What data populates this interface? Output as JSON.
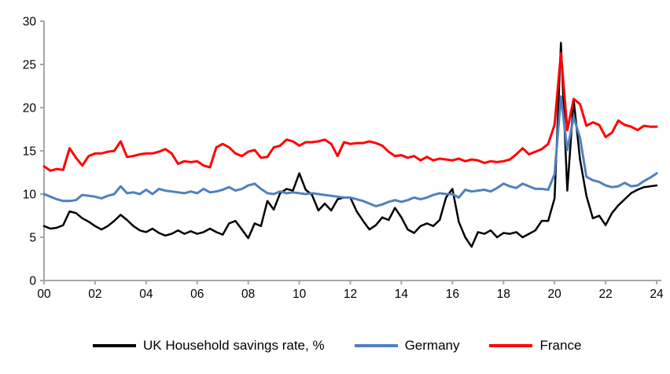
{
  "legend": {
    "items": [
      {
        "label": "UK Household savings rate, %",
        "color": "#000000"
      },
      {
        "label": "Germany",
        "color": "#4F81BD"
      },
      {
        "label": "France",
        "color": "#FF0000"
      }
    ]
  },
  "chart_data": {
    "type": "line",
    "title": "",
    "xlabel": "",
    "ylabel": "",
    "frequency": "quarterly",
    "start_year": 2000,
    "end_year": 2024,
    "ylim": [
      0,
      30
    ],
    "y_ticks": [
      0,
      5,
      10,
      15,
      20,
      25,
      30
    ],
    "x_tick_labels": [
      "00",
      "02",
      "04",
      "06",
      "08",
      "10",
      "12",
      "14",
      "16",
      "18",
      "20",
      "22",
      "24"
    ],
    "grid": "off",
    "legend_position": "bottom",
    "axis_color": "#a6a6a6",
    "series": [
      {
        "name": "UK Household savings rate, %",
        "color": "#000000",
        "stroke_width": 2.5,
        "values": [
          6.3,
          6.0,
          6.1,
          6.4,
          8.0,
          7.8,
          7.2,
          6.8,
          6.3,
          5.9,
          6.3,
          6.9,
          7.6,
          7.0,
          6.3,
          5.8,
          5.6,
          6.0,
          5.5,
          5.2,
          5.4,
          5.8,
          5.4,
          5.7,
          5.4,
          5.6,
          6.0,
          5.6,
          5.3,
          6.6,
          6.9,
          5.9,
          4.9,
          6.6,
          6.3,
          9.2,
          8.2,
          10.1,
          10.6,
          10.4,
          12.4,
          10.5,
          9.9,
          8.1,
          8.9,
          8.1,
          9.4,
          9.6,
          9.6,
          8.0,
          6.9,
          5.9,
          6.4,
          7.3,
          7.0,
          8.4,
          7.3,
          5.9,
          5.5,
          6.3,
          6.6,
          6.3,
          7.0,
          9.6,
          10.6,
          6.8,
          5.0,
          3.9,
          5.6,
          5.4,
          5.8,
          5.0,
          5.5,
          5.4,
          5.6,
          5.0,
          5.4,
          5.8,
          6.9,
          6.9,
          9.5,
          27.5,
          10.4,
          20.9,
          14.0,
          9.8,
          7.2,
          7.5,
          6.4,
          7.8,
          8.7,
          9.4,
          10.1,
          10.5,
          10.8,
          10.9,
          11.0
        ]
      },
      {
        "name": "Germany",
        "color": "#4F81BD",
        "stroke_width": 3,
        "values": [
          10.0,
          9.7,
          9.4,
          9.2,
          9.2,
          9.3,
          9.9,
          9.8,
          9.7,
          9.5,
          9.8,
          10.0,
          10.9,
          10.1,
          10.2,
          10.0,
          10.5,
          10.0,
          10.6,
          10.4,
          10.3,
          10.2,
          10.1,
          10.3,
          10.1,
          10.6,
          10.2,
          10.3,
          10.5,
          10.8,
          10.4,
          10.6,
          11.0,
          11.2,
          10.6,
          10.1,
          10.0,
          10.3,
          10.1,
          10.2,
          10.1,
          10.0,
          10.1,
          10.0,
          9.9,
          9.8,
          9.7,
          9.6,
          9.6,
          9.4,
          9.2,
          8.9,
          8.6,
          8.8,
          9.1,
          9.3,
          9.1,
          9.3,
          9.6,
          9.4,
          9.6,
          9.9,
          10.1,
          10.0,
          10.0,
          9.6,
          10.5,
          10.3,
          10.4,
          10.5,
          10.3,
          10.7,
          11.2,
          10.9,
          10.7,
          11.2,
          10.9,
          10.6,
          10.6,
          10.5,
          12.3,
          21.3,
          15.1,
          18.9,
          16.5,
          12.0,
          11.6,
          11.4,
          11.0,
          10.8,
          10.9,
          11.3,
          10.9,
          11.0,
          11.5,
          11.9,
          12.4
        ]
      },
      {
        "name": "France",
        "color": "#FF0000",
        "stroke_width": 3,
        "values": [
          13.2,
          12.7,
          12.9,
          12.8,
          15.3,
          14.2,
          13.3,
          14.4,
          14.7,
          14.7,
          14.9,
          15.0,
          16.1,
          14.3,
          14.4,
          14.6,
          14.7,
          14.7,
          14.9,
          15.2,
          14.7,
          13.5,
          13.8,
          13.7,
          13.8,
          13.3,
          13.1,
          15.4,
          15.8,
          15.4,
          14.7,
          14.4,
          14.9,
          15.1,
          14.2,
          14.3,
          15.4,
          15.6,
          16.3,
          16.1,
          15.6,
          16.0,
          16.0,
          16.1,
          16.3,
          15.8,
          14.4,
          16.0,
          15.8,
          15.9,
          15.9,
          16.1,
          15.9,
          15.6,
          14.9,
          14.4,
          14.5,
          14.2,
          14.4,
          13.9,
          14.3,
          13.9,
          14.1,
          14.0,
          13.9,
          14.1,
          13.8,
          14.0,
          13.9,
          13.6,
          13.8,
          13.7,
          13.8,
          14.0,
          14.6,
          15.3,
          14.6,
          14.9,
          15.2,
          15.8,
          18.0,
          26.3,
          17.4,
          21.0,
          20.4,
          17.9,
          18.3,
          18.0,
          16.6,
          17.1,
          18.5,
          18.0,
          17.8,
          17.4,
          17.9,
          17.8,
          17.8
        ]
      }
    ]
  }
}
